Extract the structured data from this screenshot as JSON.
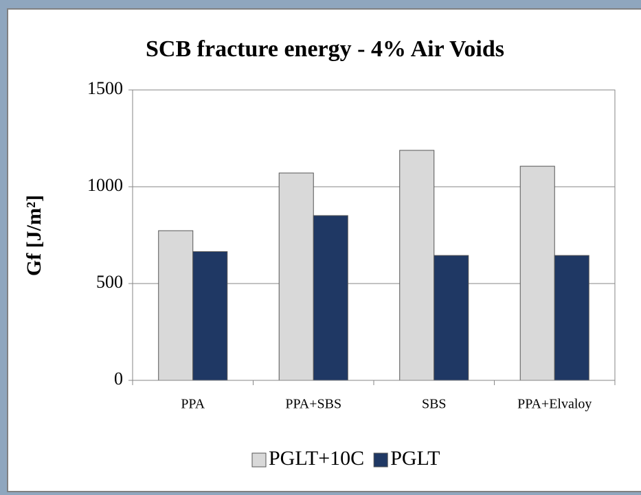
{
  "chart_data": {
    "type": "bar",
    "title": "SCB fracture energy - 4% Air Voids",
    "y_label": "Gf [J/m²]",
    "categories": [
      "PPA",
      "PPA+SBS",
      "SBS",
      "PPA+Elvaloy"
    ],
    "series": [
      {
        "name": "PGLT+10C",
        "color": "#d9d9d9",
        "values": [
          773,
          1071,
          1188,
          1106
        ]
      },
      {
        "name": "PGLT",
        "color": "#1f3864",
        "values": [
          665,
          851,
          645,
          645
        ]
      }
    ],
    "ylim": [
      0,
      1500
    ],
    "yticks": [
      0,
      500,
      1000,
      1500
    ],
    "grid": true,
    "legend": "bottom"
  }
}
